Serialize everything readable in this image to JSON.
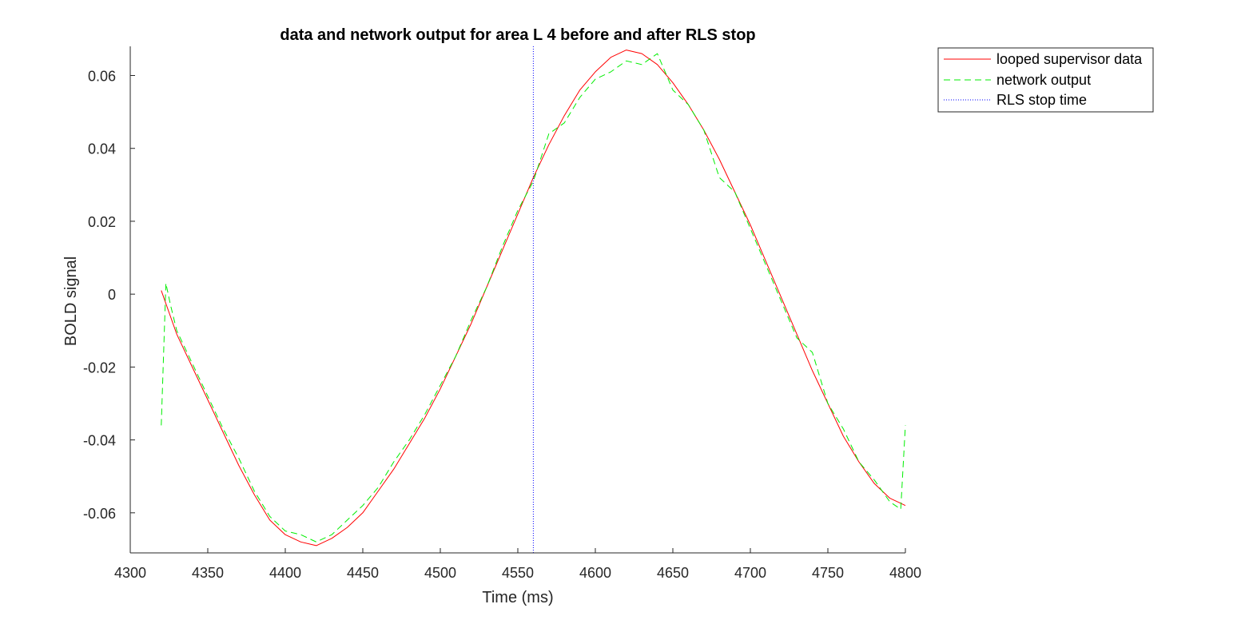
{
  "chart_data": {
    "type": "line",
    "title": "data and network output for area L 4 before and after RLS stop",
    "xlabel": "Time (ms)",
    "ylabel": "BOLD signal",
    "xlim": [
      4300,
      4800
    ],
    "ylim": [
      -0.071,
      0.068
    ],
    "xticks": [
      4300,
      4350,
      4400,
      4450,
      4500,
      4550,
      4600,
      4650,
      4700,
      4750,
      4800
    ],
    "yticks": [
      -0.06,
      -0.04,
      -0.02,
      0,
      0.02,
      0.04,
      0.06
    ],
    "ytick_labels": [
      "-0.06",
      "-0.04",
      "-0.02",
      "0",
      "0.02",
      "0.04",
      "0.06"
    ],
    "grid": false,
    "legend_position": "outside top-right",
    "series": [
      {
        "name": "looped supervisor data",
        "color": "#ff0000",
        "style": "solid",
        "x": [
          4320,
          4330,
          4340,
          4350,
          4360,
          4370,
          4380,
          4390,
          4400,
          4410,
          4420,
          4430,
          4440,
          4450,
          4460,
          4470,
          4480,
          4490,
          4500,
          4510,
          4520,
          4530,
          4540,
          4550,
          4560,
          4570,
          4580,
          4590,
          4600,
          4610,
          4620,
          4630,
          4640,
          4650,
          4660,
          4670,
          4680,
          4690,
          4700,
          4710,
          4720,
          4730,
          4740,
          4750,
          4760,
          4770,
          4780,
          4790,
          4800
        ],
        "y": [
          0.001,
          -0.011,
          -0.02,
          -0.029,
          -0.038,
          -0.047,
          -0.055,
          -0.062,
          -0.066,
          -0.068,
          -0.069,
          -0.067,
          -0.064,
          -0.06,
          -0.054,
          -0.048,
          -0.041,
          -0.034,
          -0.026,
          -0.017,
          -0.008,
          0.002,
          0.012,
          0.022,
          0.032,
          0.041,
          0.049,
          0.056,
          0.061,
          0.065,
          0.067,
          0.066,
          0.063,
          0.058,
          0.052,
          0.045,
          0.037,
          0.028,
          0.019,
          0.009,
          -0.001,
          -0.011,
          -0.021,
          -0.03,
          -0.039,
          -0.046,
          -0.052,
          -0.056,
          -0.058
        ]
      },
      {
        "name": "network output",
        "color": "#00ee00",
        "style": "dashed",
        "x": [
          4320,
          4323,
          4326,
          4330,
          4340,
          4350,
          4360,
          4370,
          4380,
          4390,
          4400,
          4410,
          4420,
          4430,
          4440,
          4450,
          4460,
          4470,
          4480,
          4490,
          4500,
          4510,
          4520,
          4530,
          4540,
          4550,
          4560,
          4570,
          4580,
          4590,
          4600,
          4610,
          4620,
          4630,
          4640,
          4650,
          4660,
          4670,
          4680,
          4690,
          4700,
          4710,
          4720,
          4730,
          4740,
          4750,
          4760,
          4770,
          4780,
          4790,
          4797,
          4800
        ],
        "y": [
          -0.036,
          0.003,
          -0.003,
          -0.01,
          -0.019,
          -0.028,
          -0.037,
          -0.045,
          -0.054,
          -0.061,
          -0.065,
          -0.066,
          -0.068,
          -0.066,
          -0.062,
          -0.058,
          -0.053,
          -0.046,
          -0.04,
          -0.033,
          -0.025,
          -0.017,
          -0.007,
          0.002,
          0.013,
          0.023,
          0.031,
          0.044,
          0.047,
          0.054,
          0.059,
          0.061,
          0.064,
          0.063,
          0.066,
          0.056,
          0.052,
          0.045,
          0.032,
          0.028,
          0.018,
          0.008,
          -0.002,
          -0.012,
          -0.016,
          -0.03,
          -0.037,
          -0.046,
          -0.051,
          -0.057,
          -0.059,
          -0.036
        ]
      },
      {
        "name": "RLS stop time",
        "color": "#0000ff",
        "style": "dotted",
        "x": [
          4560,
          4560
        ],
        "y": [
          -0.071,
          0.068
        ]
      }
    ]
  }
}
